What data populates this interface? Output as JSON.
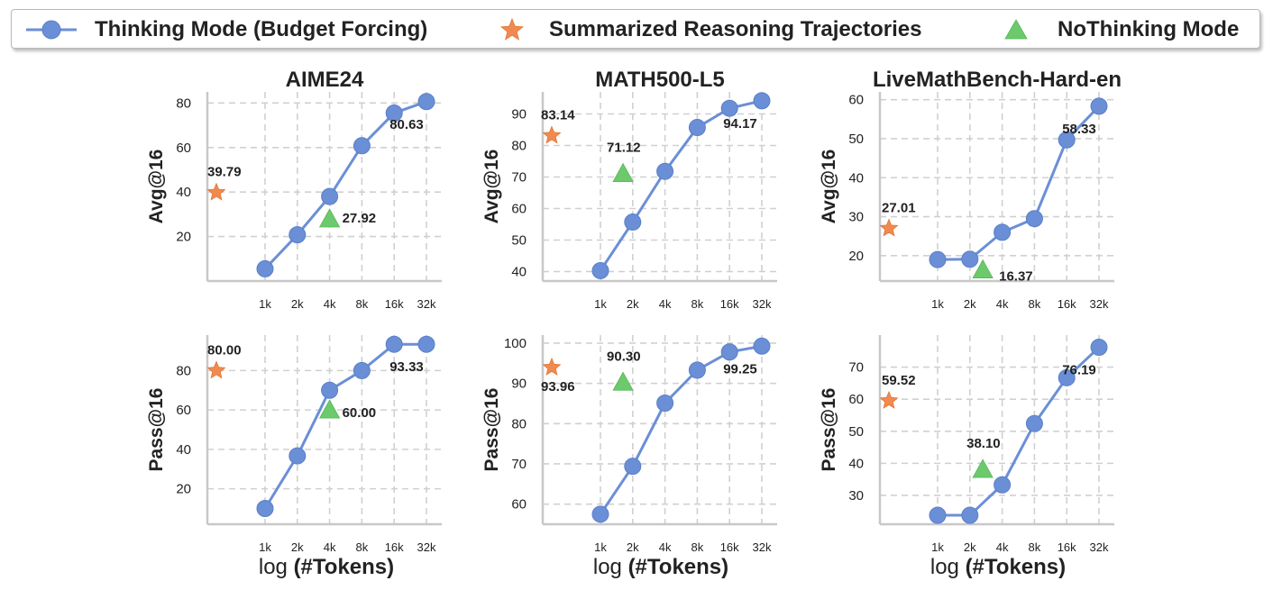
{
  "legend": {
    "thinking": "Thinking Mode (Budget Forcing)",
    "summarized": "Summarized Reasoning Trajectories",
    "nothinking": "NoThinking Mode"
  },
  "xlabel_prefix": "log",
  "xlabel_bold": "(#Tokens)",
  "colors": {
    "thinking": "#6b8fd6",
    "thinking_edge": "#5a7fc8",
    "summarized": "#f08a50",
    "nothinking": "#6cc96c",
    "grid": "#d0d0d0",
    "axis": "#c8c8c8"
  },
  "chart_data": [
    {
      "type": "line",
      "title": "AIME24",
      "ylabel": "Avg@16",
      "xlabel": "log (#Tokens)",
      "x_ticks": [
        "1k",
        "2k",
        "4k",
        "8k",
        "16k",
        "32k"
      ],
      "yticks": [
        20,
        40,
        60,
        80
      ],
      "ylim": [
        0,
        85
      ],
      "series": [
        {
          "name": "Thinking Mode (Budget Forcing)",
          "values": [
            5.5,
            20.8,
            38.0,
            60.8,
            75.5,
            80.63
          ],
          "label": "80.63"
        }
      ],
      "summarized": {
        "value": 39.79,
        "label": "39.79"
      },
      "nothinking": {
        "x": 2.0,
        "value": 27.92,
        "label": "27.92"
      }
    },
    {
      "type": "line",
      "title": "MATH500-L5",
      "ylabel": "Avg@16",
      "xlabel": "log (#Tokens)",
      "x_ticks": [
        "1k",
        "2k",
        "4k",
        "8k",
        "16k",
        "32k"
      ],
      "yticks": [
        40,
        50,
        60,
        70,
        80,
        90
      ],
      "ylim": [
        37,
        97
      ],
      "series": [
        {
          "name": "Thinking Mode (Budget Forcing)",
          "values": [
            40.3,
            55.7,
            71.8,
            85.7,
            91.8,
            94.17
          ],
          "label": "94.17"
        }
      ],
      "summarized": {
        "value": 83.14,
        "label": "83.14"
      },
      "nothinking": {
        "x": 0.7,
        "value": 71.12,
        "label": "71.12"
      }
    },
    {
      "type": "line",
      "title": "LiveMathBench-Hard-en",
      "ylabel": "Avg@16",
      "xlabel": "log (#Tokens)",
      "x_ticks": [
        "1k",
        "2k",
        "4k",
        "8k",
        "16k",
        "32k"
      ],
      "yticks": [
        20,
        30,
        40,
        50,
        60
      ],
      "ylim": [
        13.5,
        62
      ],
      "series": [
        {
          "name": "Thinking Mode (Budget Forcing)",
          "values": [
            19.0,
            19.1,
            26.0,
            29.5,
            49.7,
            58.33
          ],
          "label": "58.33"
        }
      ],
      "summarized": {
        "value": 27.01,
        "label": "27.01"
      },
      "nothinking": {
        "x": 1.4,
        "value": 16.37,
        "label": "16.37"
      }
    },
    {
      "type": "line",
      "title": "",
      "ylabel": "Pass@16",
      "xlabel": "log (#Tokens)",
      "x_ticks": [
        "1k",
        "2k",
        "4k",
        "8k",
        "16k",
        "32k"
      ],
      "yticks": [
        20,
        40,
        60,
        80
      ],
      "ylim": [
        2,
        98
      ],
      "series": [
        {
          "name": "Thinking Mode (Budget Forcing)",
          "values": [
            10.0,
            36.7,
            70.0,
            80.0,
            93.33,
            93.33
          ],
          "label": "93.33"
        }
      ],
      "summarized": {
        "value": 80.0,
        "label": "80.00"
      },
      "nothinking": {
        "x": 2.0,
        "value": 60.0,
        "label": "60.00"
      }
    },
    {
      "type": "line",
      "title": "",
      "ylabel": "Pass@16",
      "xlabel": "log (#Tokens)",
      "x_ticks": [
        "1k",
        "2k",
        "4k",
        "8k",
        "16k",
        "32k"
      ],
      "yticks": [
        60,
        70,
        80,
        90,
        100
      ],
      "ylim": [
        55,
        102
      ],
      "series": [
        {
          "name": "Thinking Mode (Budget Forcing)",
          "values": [
            57.5,
            69.4,
            85.1,
            93.3,
            97.8,
            99.25
          ],
          "label": "99.25"
        }
      ],
      "summarized": {
        "value": 93.96,
        "label": "93.96"
      },
      "nothinking": {
        "x": 0.7,
        "value": 90.3,
        "label": "90.30"
      }
    },
    {
      "type": "line",
      "title": "",
      "ylabel": "Pass@16",
      "xlabel": "log (#Tokens)",
      "x_ticks": [
        "1k",
        "2k",
        "4k",
        "8k",
        "16k",
        "32k"
      ],
      "yticks": [
        30,
        40,
        50,
        60,
        70
      ],
      "ylim": [
        21,
        80
      ],
      "series": [
        {
          "name": "Thinking Mode (Budget Forcing)",
          "values": [
            23.8,
            23.8,
            33.3,
            52.4,
            66.7,
            76.19
          ],
          "label": "76.19"
        }
      ],
      "summarized": {
        "value": 59.52,
        "label": "59.52"
      },
      "nothinking": {
        "x": 1.4,
        "value": 38.1,
        "label": "38.10"
      }
    }
  ]
}
